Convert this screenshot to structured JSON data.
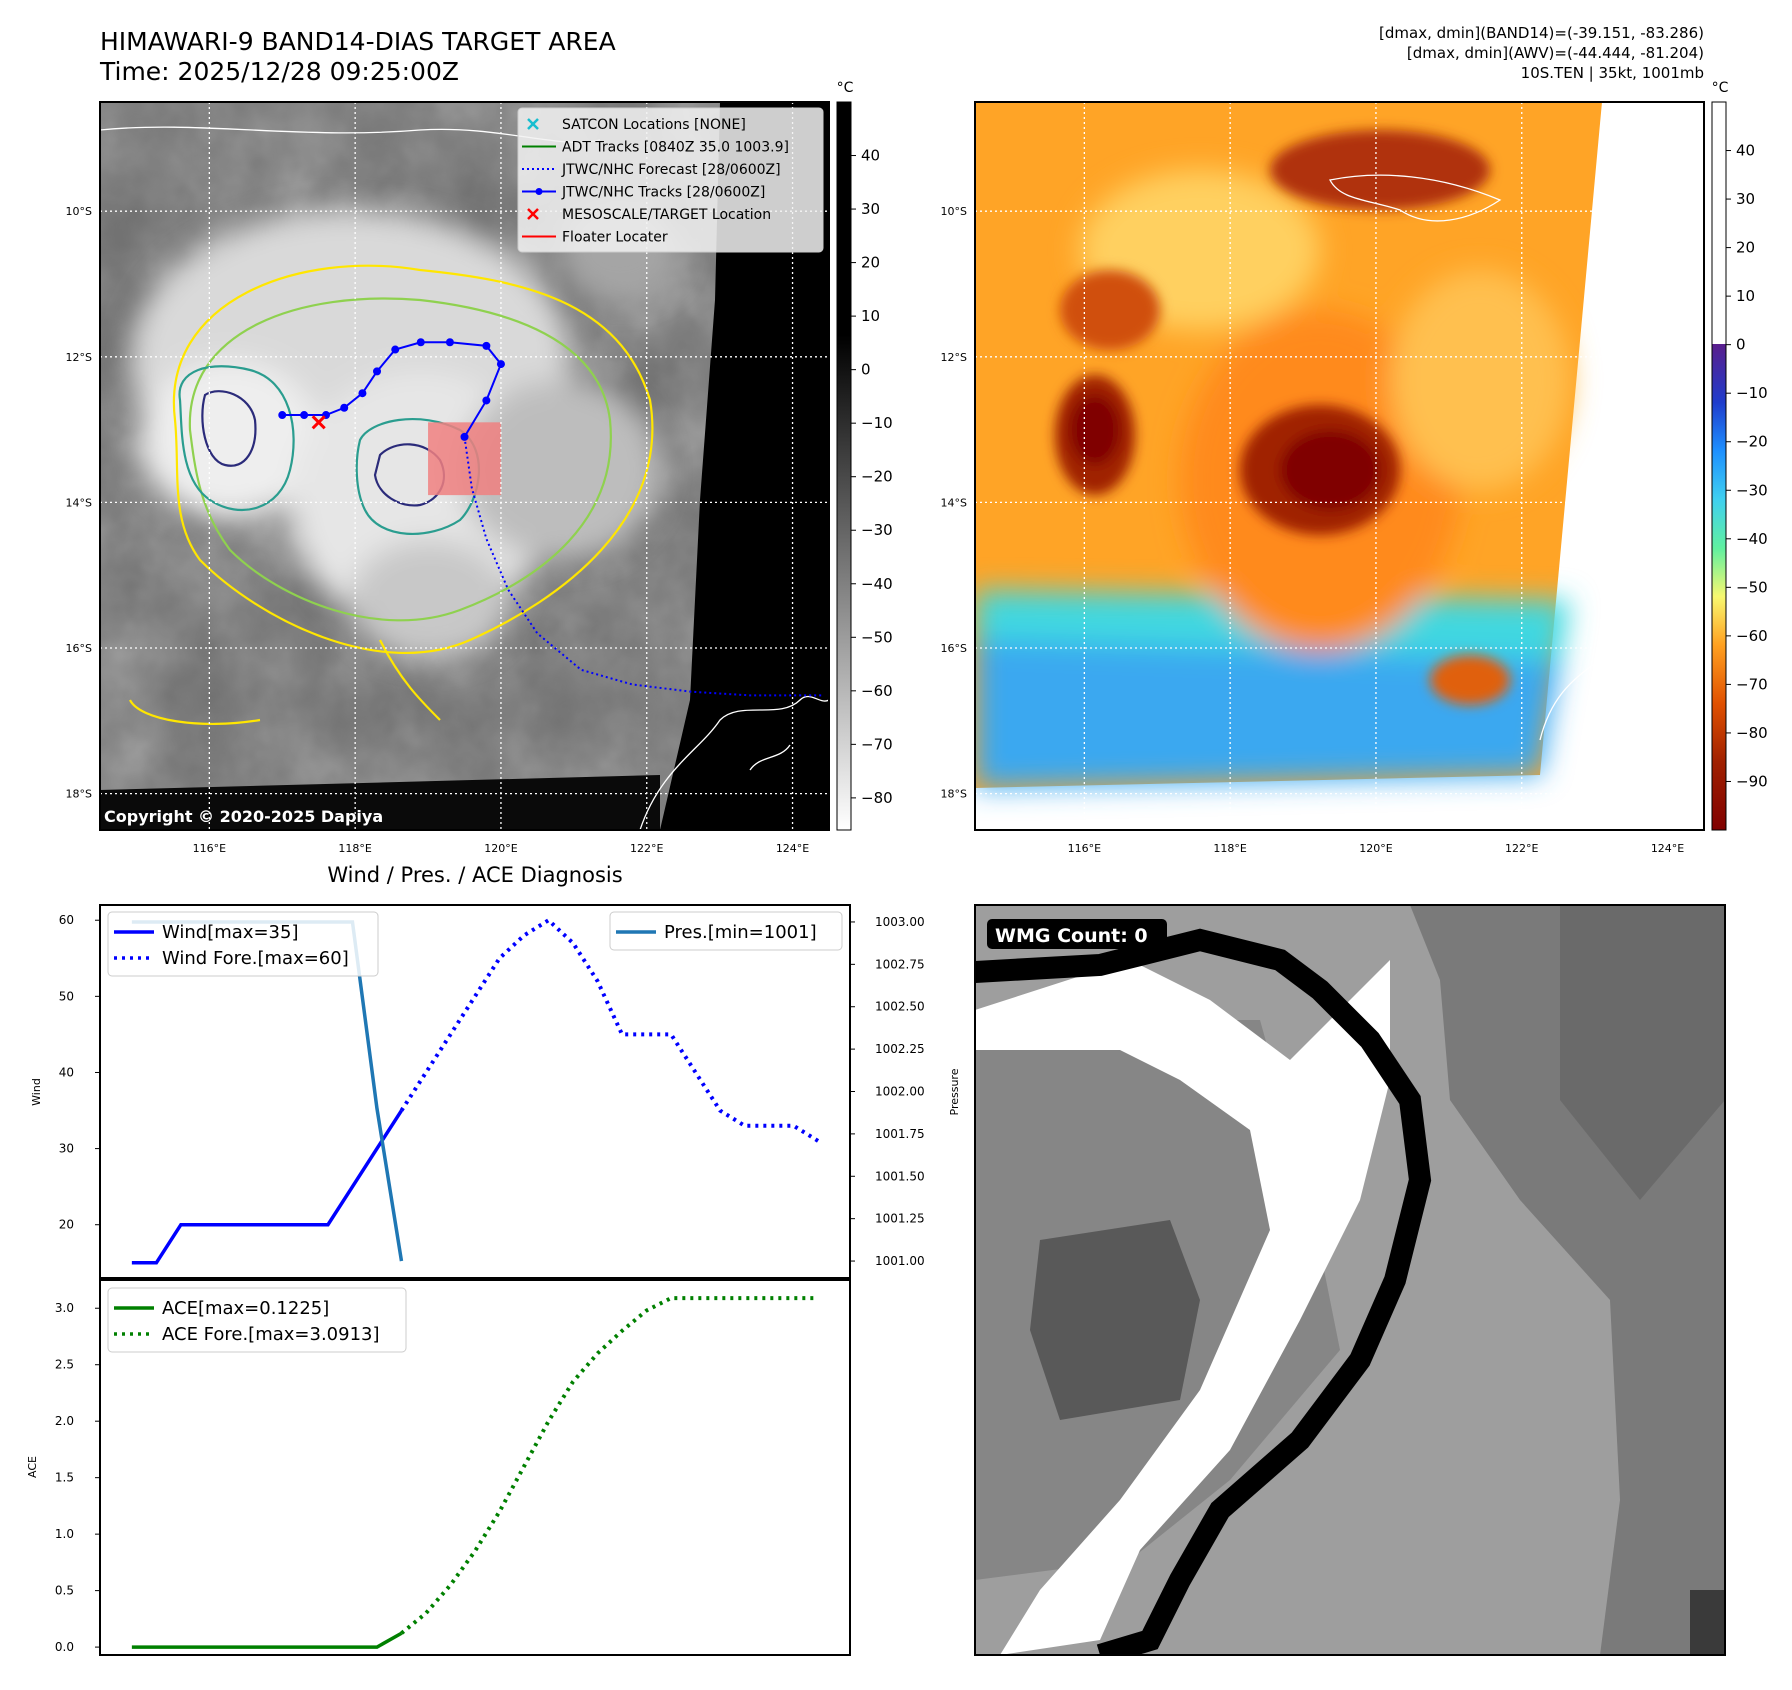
{
  "header": {
    "title_line1": "HIMAWARI-9 BAND14-DIAS TARGET AREA",
    "title_line2": "Time: 2025/12/28 09:25:00Z",
    "info_line1": "[dmax, dmin](BAND14)=(-39.151, -83.286)",
    "info_line2": "[dmax, dmin](AWV)=(-44.444, -81.204)",
    "info_line3": "10S.TEN | 35kt, 1001mb"
  },
  "maps": {
    "lat_ticks": [
      "10°S",
      "12°S",
      "14°S",
      "16°S",
      "18°S"
    ],
    "lon_ticks": [
      "116°E",
      "118°E",
      "120°E",
      "122°E",
      "124°E"
    ],
    "copyright": "Copyright © 2020-2025 Dapiya",
    "colorbar_unit": "°C",
    "ir_colorbar_ticks": [
      "40",
      "30",
      "20",
      "10",
      "0",
      "−10",
      "−20",
      "−30",
      "−40",
      "−50",
      "−60",
      "−70",
      "−80"
    ],
    "awv_colorbar_ticks": [
      "40",
      "30",
      "20",
      "10",
      "0",
      "−10",
      "−20",
      "−30",
      "−40",
      "−50",
      "−60",
      "−70",
      "−80",
      "−90"
    ],
    "legend": [
      {
        "label": "SATCON Locations [NONE]",
        "color": "#17becf",
        "style": "x-marker"
      },
      {
        "label": "ADT Tracks [0840Z 35.0 1003.9]",
        "color": "#008000",
        "style": "line"
      },
      {
        "label": "JTWC/NHC Forecast [28/0600Z]",
        "color": "#0000ff",
        "style": "dotted"
      },
      {
        "label": "JTWC/NHC Tracks [28/0600Z]",
        "color": "#0000ff",
        "style": "line-dot"
      },
      {
        "label": "MESOSCALE/TARGET Location",
        "color": "#ff0000",
        "style": "x-marker"
      },
      {
        "label": "Floater Locater",
        "color": "#ff0000",
        "style": "line"
      }
    ],
    "track": {
      "lon": [
        117.0,
        117.3,
        117.6,
        117.85,
        118.1,
        118.3,
        118.55,
        118.9,
        119.3,
        119.8,
        120.0,
        119.8,
        119.5
      ],
      "lat": [
        -12.8,
        -12.8,
        -12.8,
        -12.7,
        -12.5,
        -12.2,
        -11.9,
        -11.8,
        -11.8,
        -11.85,
        -12.1,
        -12.6,
        -13.1
      ]
    },
    "forecast": {
      "lon": [
        119.5,
        119.6,
        119.8,
        120.1,
        120.5,
        121.1,
        121.8,
        122.6,
        123.4,
        124.4
      ],
      "lat": [
        -13.1,
        -13.8,
        -14.5,
        -15.2,
        -15.8,
        -16.3,
        -16.5,
        -16.6,
        -16.65,
        -16.65
      ]
    },
    "target_marker": {
      "lon": 117.5,
      "lat": -12.9
    },
    "floater_box": {
      "lon_min": 119.0,
      "lon_max": 120.0,
      "lat_min": -13.9,
      "lat_max": -12.9
    }
  },
  "chart_data": [
    {
      "type": "line",
      "title": "Wind / Pres. / ACE Diagnosis",
      "ylabel": "Wind",
      "y2label": "Pressure",
      "ylim": [
        13,
        62
      ],
      "y2lim": [
        1000.9,
        1003.1
      ],
      "yticks": [
        20,
        30,
        40,
        50,
        60
      ],
      "y2ticks": [
        "1001.00",
        "1001.25",
        "1001.50",
        "1001.75",
        "1002.00",
        "1002.25",
        "1002.50",
        "1002.75",
        "1003.00"
      ],
      "series": [
        {
          "name": "Wind[max=35]",
          "color": "#0000ff",
          "style": "solid",
          "axis": "left",
          "x": [
            0,
            1,
            2,
            3,
            4,
            5,
            6,
            7,
            8,
            9,
            10,
            11
          ],
          "values": [
            15,
            15,
            20,
            20,
            20,
            20,
            20,
            20,
            20,
            25,
            30,
            35
          ]
        },
        {
          "name": "Wind Fore.[max=60]",
          "color": "#0000ff",
          "style": "dotted",
          "axis": "left",
          "x": [
            11,
            12,
            13,
            14,
            15,
            16,
            17,
            18,
            19,
            20,
            21,
            22,
            23,
            24,
            25,
            26,
            27,
            28
          ],
          "values": [
            35,
            40,
            45,
            50,
            55,
            58,
            60,
            57,
            52,
            45,
            45,
            45,
            40,
            35,
            33,
            33,
            33,
            31
          ]
        },
        {
          "name": "Pres.[min=1001]",
          "color": "#1f77b4",
          "style": "solid",
          "axis": "right",
          "x": [
            0,
            1,
            2,
            3,
            4,
            5,
            6,
            7,
            8,
            9,
            10,
            11
          ],
          "values": [
            1003,
            1003,
            1003,
            1003,
            1003,
            1003,
            1003,
            1003,
            1003,
            1003,
            1001.9,
            1001
          ]
        }
      ]
    },
    {
      "type": "line",
      "ylabel": "ACE",
      "ylim": [
        -0.07,
        3.25
      ],
      "yticks": [
        "0.0",
        "0.5",
        "1.0",
        "1.5",
        "2.0",
        "2.5",
        "3.0"
      ],
      "series": [
        {
          "name": "ACE[max=0.1225]",
          "color": "#008000",
          "style": "solid",
          "x": [
            0,
            1,
            2,
            3,
            4,
            5,
            6,
            7,
            8,
            9,
            10,
            11
          ],
          "values": [
            0,
            0,
            0,
            0,
            0,
            0,
            0,
            0,
            0,
            0,
            0,
            0.1225
          ]
        },
        {
          "name": "ACE Fore.[max=3.0913]",
          "color": "#008000",
          "style": "dotted",
          "x": [
            11,
            12,
            13,
            14,
            15,
            16,
            17,
            18,
            19,
            20,
            21,
            22,
            23,
            24,
            25,
            26,
            27,
            28
          ],
          "values": [
            0.1225,
            0.3,
            0.55,
            0.85,
            1.2,
            1.6,
            2.0,
            2.35,
            2.6,
            2.8,
            2.98,
            3.09,
            3.09,
            3.09,
            3.09,
            3.09,
            3.09,
            3.09
          ]
        }
      ]
    }
  ],
  "wmg": {
    "label": "WMG Count: 0"
  }
}
